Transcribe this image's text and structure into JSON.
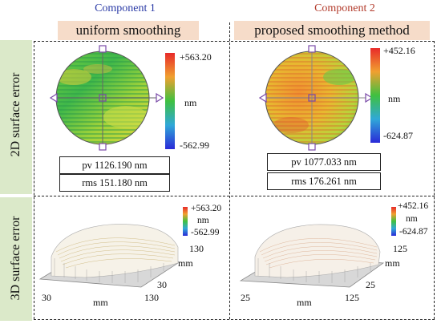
{
  "columns": [
    {
      "component": "Component 1",
      "method": "uniform smoothing",
      "pv": "pv 1126.190 nm",
      "rms": "rms 151.180 nm",
      "colorbar": {
        "max": "+563.20",
        "unit": "nm",
        "min": "-562.99"
      },
      "plot3d": {
        "max": "+563.20",
        "unit": "nm",
        "min": "-562.99",
        "x_start": "30",
        "x_end": "130",
        "y_start": "30",
        "y_end": "130",
        "axis_unit": "mm"
      }
    },
    {
      "component": "Component 2",
      "method": "proposed smoothing method",
      "pv": "pv 1077.033 nm",
      "rms": "rms 176.261 nm",
      "colorbar": {
        "max": "+452.16",
        "unit": "nm",
        "min": "-624.87"
      },
      "plot3d": {
        "max": "+452.16",
        "unit": "nm",
        "min": "-624.87",
        "x_start": "25",
        "x_end": "125",
        "y_start": "25",
        "y_end": "125",
        "axis_unit": "mm"
      }
    }
  ],
  "rows": {
    "top": "2D surface error",
    "bottom": "3D surface error"
  },
  "colors": {
    "header_bg": "#f6dcc9",
    "side_bg": "#dbe9c9",
    "component1": "#2a3aa6",
    "component2": "#b23a2a"
  }
}
